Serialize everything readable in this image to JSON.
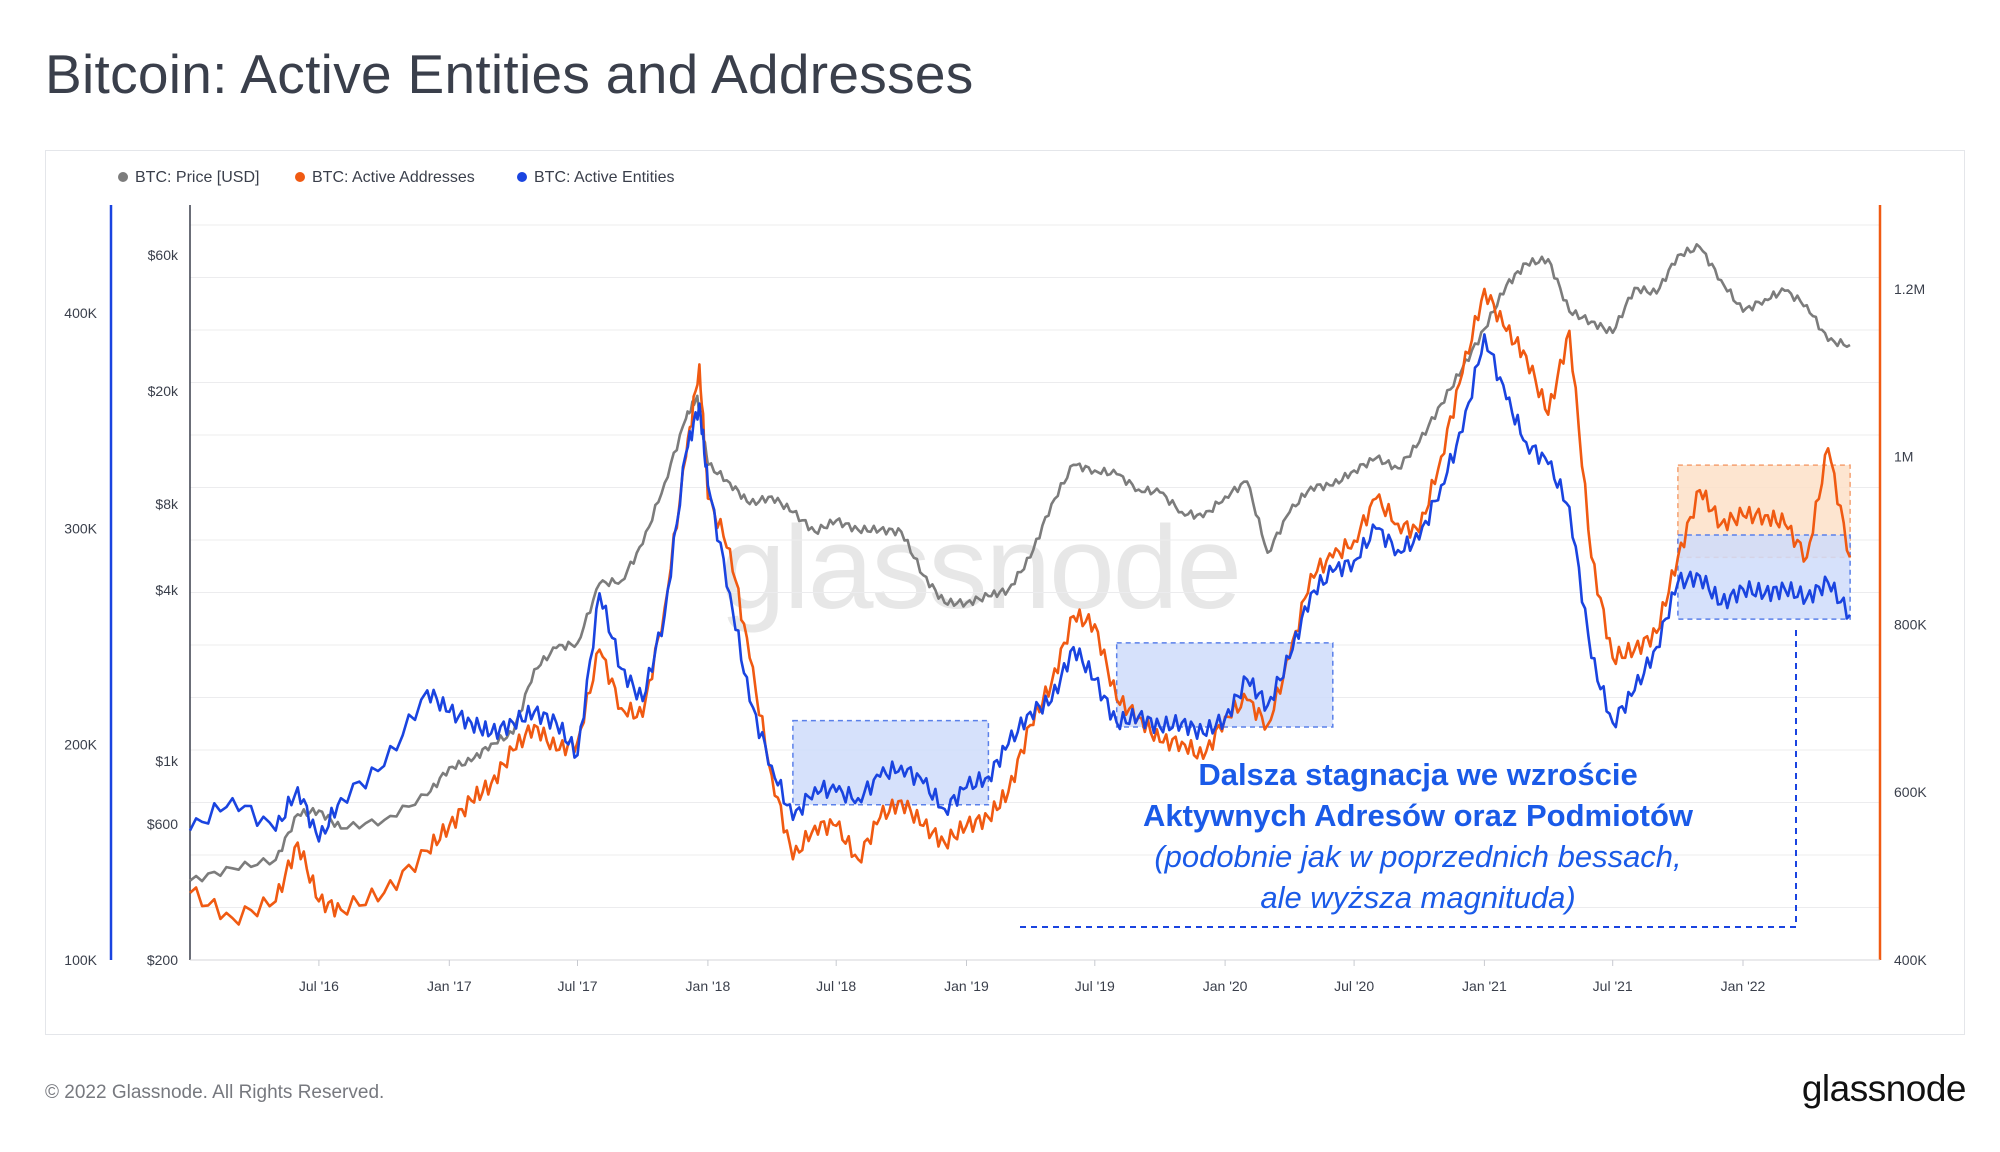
{
  "title": "Bitcoin: Active Entities and Addresses",
  "footer": {
    "copyright": "© 2022 Glassnode. All Rights Reserved.",
    "logo": "glassnode"
  },
  "watermark": "glassnode",
  "colors": {
    "price": "#7c7c7c",
    "addresses": "#f05a12",
    "entities": "#1a44e0",
    "blue_box_fill": "#cfdcfa",
    "orange_box_fill": "#fde0c8"
  },
  "chart_data": {
    "type": "line",
    "legend": [
      "BTC: Price [USD]",
      "BTC: Active Addresses",
      "BTC: Active Entities"
    ],
    "legend_placement": "top-left",
    "grid": true,
    "x_ticks": [
      "Jul '16",
      "Jan '17",
      "Jul '17",
      "Jan '18",
      "Jul '18",
      "Jan '19",
      "Jul '19",
      "Jan '20",
      "Jul '20",
      "Jan '21",
      "Jul '21",
      "Jan '22"
    ],
    "x_range": [
      "2016-01",
      "2022-06"
    ],
    "y_left_entities": {
      "ticks": [
        "100K",
        "200K",
        "300K",
        "400K"
      ],
      "range": [
        100000,
        450000
      ]
    },
    "y_left_price": {
      "scale": "log",
      "ticks": [
        "$200",
        "$600",
        "$1k",
        "$4k",
        "$8k",
        "$20k",
        "$60k"
      ],
      "range": [
        200,
        90000
      ]
    },
    "y_right_addresses": {
      "ticks": [
        "400K",
        "600K",
        "800K",
        "1M",
        "1.2M"
      ],
      "range": [
        400000,
        1300000
      ]
    },
    "series": [
      {
        "name": "BTC: Price [USD]",
        "axis": "price",
        "points": [
          [
            "2016-01",
            380
          ],
          [
            "2016-03",
            420
          ],
          [
            "2016-05",
            450
          ],
          [
            "2016-06",
            650
          ],
          [
            "2016-07",
            670
          ],
          [
            "2016-08",
            580
          ],
          [
            "2016-10",
            620
          ],
          [
            "2016-12",
            760
          ],
          [
            "2017-01",
            950
          ],
          [
            "2017-02",
            1000
          ],
          [
            "2017-03",
            1150
          ],
          [
            "2017-04",
            1250
          ],
          [
            "2017-05",
            2100
          ],
          [
            "2017-06",
            2500
          ],
          [
            "2017-07",
            2600
          ],
          [
            "2017-08",
            4200
          ],
          [
            "2017-09",
            4300
          ],
          [
            "2017-10",
            5800
          ],
          [
            "2017-11",
            9500
          ],
          [
            "2017-12",
            16000
          ],
          [
            "2017-12-17",
            19200
          ],
          [
            "2018-01",
            11000
          ],
          [
            "2018-02",
            9500
          ],
          [
            "2018-03",
            8000
          ],
          [
            "2018-04",
            8500
          ],
          [
            "2018-05",
            7500
          ],
          [
            "2018-06",
            6400
          ],
          [
            "2018-07",
            7000
          ],
          [
            "2018-08",
            6500
          ],
          [
            "2018-09",
            6500
          ],
          [
            "2018-10",
            6400
          ],
          [
            "2018-11",
            4500
          ],
          [
            "2018-12",
            3600
          ],
          [
            "2019-01",
            3600
          ],
          [
            "2019-02",
            3800
          ],
          [
            "2019-03",
            4000
          ],
          [
            "2019-04",
            5200
          ],
          [
            "2019-05",
            8000
          ],
          [
            "2019-06",
            11000
          ],
          [
            "2019-07",
            10500
          ],
          [
            "2019-08",
            10200
          ],
          [
            "2019-09",
            9000
          ],
          [
            "2019-10",
            8800
          ],
          [
            "2019-11",
            7500
          ],
          [
            "2019-12",
            7200
          ],
          [
            "2020-01",
            8500
          ],
          [
            "2020-02",
            9600
          ],
          [
            "2020-03",
            5400
          ],
          [
            "2020-04",
            7500
          ],
          [
            "2020-05",
            9200
          ],
          [
            "2020-06",
            9300
          ],
          [
            "2020-07",
            10500
          ],
          [
            "2020-08",
            11600
          ],
          [
            "2020-09",
            10700
          ],
          [
            "2020-10",
            13200
          ],
          [
            "2020-11",
            18000
          ],
          [
            "2020-12",
            24000
          ],
          [
            "2021-01",
            33000
          ],
          [
            "2021-02",
            47000
          ],
          [
            "2021-03",
            56000
          ],
          [
            "2021-04",
            58000
          ],
          [
            "2021-05",
            38000
          ],
          [
            "2021-06",
            35000
          ],
          [
            "2021-07",
            32000
          ],
          [
            "2021-08",
            46000
          ],
          [
            "2021-09",
            44000
          ],
          [
            "2021-10",
            60000
          ],
          [
            "2021-11",
            64000
          ],
          [
            "2021-12",
            49000
          ],
          [
            "2022-01",
            38000
          ],
          [
            "2022-02",
            42000
          ],
          [
            "2022-03",
            45000
          ],
          [
            "2022-04",
            40000
          ],
          [
            "2022-05",
            30000
          ],
          [
            "2022-06",
            29000
          ]
        ]
      },
      {
        "name": "BTC: Active Addresses",
        "axis": "addresses",
        "points": [
          [
            "2016-01",
            480000
          ],
          [
            "2016-03",
            450000
          ],
          [
            "2016-05",
            470000
          ],
          [
            "2016-06",
            540000
          ],
          [
            "2016-07",
            470000
          ],
          [
            "2016-08",
            460000
          ],
          [
            "2016-10",
            480000
          ],
          [
            "2016-12",
            530000
          ],
          [
            "2017-01",
            560000
          ],
          [
            "2017-02",
            590000
          ],
          [
            "2017-03",
            610000
          ],
          [
            "2017-04",
            650000
          ],
          [
            "2017-05",
            680000
          ],
          [
            "2017-06",
            650000
          ],
          [
            "2017-07",
            660000
          ],
          [
            "2017-08",
            770000
          ],
          [
            "2017-09",
            700000
          ],
          [
            "2017-10",
            690000
          ],
          [
            "2017-11",
            820000
          ],
          [
            "2017-12",
            1000000
          ],
          [
            "2017-12-20",
            1110000
          ],
          [
            "2018-01",
            950000
          ],
          [
            "2018-02",
            890000
          ],
          [
            "2018-03",
            760000
          ],
          [
            "2018-04",
            620000
          ],
          [
            "2018-05",
            520000
          ],
          [
            "2018-06",
            560000
          ],
          [
            "2018-07",
            560000
          ],
          [
            "2018-08",
            520000
          ],
          [
            "2018-09",
            570000
          ],
          [
            "2018-10",
            590000
          ],
          [
            "2018-11",
            560000
          ],
          [
            "2018-12",
            540000
          ],
          [
            "2019-01",
            560000
          ],
          [
            "2019-02",
            570000
          ],
          [
            "2019-03",
            600000
          ],
          [
            "2019-04",
            680000
          ],
          [
            "2019-05",
            730000
          ],
          [
            "2019-06",
            810000
          ],
          [
            "2019-07",
            800000
          ],
          [
            "2019-08",
            710000
          ],
          [
            "2019-09",
            690000
          ],
          [
            "2019-10",
            660000
          ],
          [
            "2019-11",
            660000
          ],
          [
            "2019-12",
            640000
          ],
          [
            "2020-01",
            690000
          ],
          [
            "2020-02",
            710000
          ],
          [
            "2020-03",
            680000
          ],
          [
            "2020-04",
            760000
          ],
          [
            "2020-05",
            860000
          ],
          [
            "2020-06",
            880000
          ],
          [
            "2020-07",
            900000
          ],
          [
            "2020-08",
            950000
          ],
          [
            "2020-09",
            920000
          ],
          [
            "2020-10",
            910000
          ],
          [
            "2020-11",
            1000000
          ],
          [
            "2020-12",
            1100000
          ],
          [
            "2021-01",
            1200000
          ],
          [
            "2021-02",
            1150000
          ],
          [
            "2021-03",
            1120000
          ],
          [
            "2021-04",
            1050000
          ],
          [
            "2021-05",
            1150000
          ],
          [
            "2021-06",
            880000
          ],
          [
            "2021-07",
            760000
          ],
          [
            "2021-08",
            770000
          ],
          [
            "2021-09",
            790000
          ],
          [
            "2021-10",
            880000
          ],
          [
            "2021-11",
            960000
          ],
          [
            "2021-12",
            920000
          ],
          [
            "2022-01",
            930000
          ],
          [
            "2022-02",
            930000
          ],
          [
            "2022-03",
            920000
          ],
          [
            "2022-04",
            880000
          ],
          [
            "2022-05",
            1010000
          ],
          [
            "2022-06",
            880000
          ]
        ]
      },
      {
        "name": "BTC: Active Entities",
        "axis": "entities",
        "points": [
          [
            "2016-01",
            160000
          ],
          [
            "2016-03",
            175000
          ],
          [
            "2016-05",
            160000
          ],
          [
            "2016-06",
            180000
          ],
          [
            "2016-07",
            155000
          ],
          [
            "2016-08",
            175000
          ],
          [
            "2016-10",
            190000
          ],
          [
            "2016-12",
            225000
          ],
          [
            "2017-01",
            215000
          ],
          [
            "2017-02",
            210000
          ],
          [
            "2017-03",
            205000
          ],
          [
            "2017-04",
            210000
          ],
          [
            "2017-05",
            215000
          ],
          [
            "2017-06",
            210000
          ],
          [
            "2017-07",
            195000
          ],
          [
            "2017-08",
            270000
          ],
          [
            "2017-09",
            235000
          ],
          [
            "2017-10",
            220000
          ],
          [
            "2017-11",
            260000
          ],
          [
            "2017-12",
            335000
          ],
          [
            "2017-12-20",
            358000
          ],
          [
            "2018-01",
            320000
          ],
          [
            "2018-02",
            270000
          ],
          [
            "2018-03",
            220000
          ],
          [
            "2018-04",
            190000
          ],
          [
            "2018-05",
            165000
          ],
          [
            "2018-06",
            180000
          ],
          [
            "2018-07",
            178000
          ],
          [
            "2018-08",
            175000
          ],
          [
            "2018-09",
            185000
          ],
          [
            "2018-10",
            190000
          ],
          [
            "2018-11",
            182000
          ],
          [
            "2018-12",
            170000
          ],
          [
            "2019-01",
            180000
          ],
          [
            "2019-02",
            185000
          ],
          [
            "2019-03",
            200000
          ],
          [
            "2019-04",
            215000
          ],
          [
            "2019-05",
            220000
          ],
          [
            "2019-06",
            245000
          ],
          [
            "2019-07",
            230000
          ],
          [
            "2019-08",
            210000
          ],
          [
            "2019-09",
            213000
          ],
          [
            "2019-10",
            208000
          ],
          [
            "2019-11",
            210000
          ],
          [
            "2019-12",
            205000
          ],
          [
            "2020-01",
            212000
          ],
          [
            "2020-02",
            230000
          ],
          [
            "2020-03",
            218000
          ],
          [
            "2020-04",
            240000
          ],
          [
            "2020-05",
            270000
          ],
          [
            "2020-06",
            280000
          ],
          [
            "2020-07",
            285000
          ],
          [
            "2020-08",
            300000
          ],
          [
            "2020-09",
            290000
          ],
          [
            "2020-10",
            295000
          ],
          [
            "2020-11",
            320000
          ],
          [
            "2020-12",
            345000
          ],
          [
            "2021-01",
            390000
          ],
          [
            "2021-02",
            360000
          ],
          [
            "2021-03",
            340000
          ],
          [
            "2021-04",
            330000
          ],
          [
            "2021-05",
            310000
          ],
          [
            "2021-06",
            240000
          ],
          [
            "2021-07",
            210000
          ],
          [
            "2021-08",
            225000
          ],
          [
            "2021-09",
            245000
          ],
          [
            "2021-10",
            275000
          ],
          [
            "2021-11",
            278000
          ],
          [
            "2021-12",
            265000
          ],
          [
            "2022-01",
            272000
          ],
          [
            "2022-02",
            270000
          ],
          [
            "2022-03",
            272000
          ],
          [
            "2022-04",
            268000
          ],
          [
            "2022-05",
            275000
          ],
          [
            "2022-06",
            260000
          ]
        ]
      }
    ],
    "shaded_ranges": [
      {
        "from": "2018-05",
        "to": "2019-02",
        "low": 172000,
        "high": 211000,
        "color": "blue"
      },
      {
        "from": "2019-08",
        "to": "2020-06",
        "low": 208000,
        "high": 247000,
        "color": "blue"
      },
      {
        "from": "2021-10",
        "to": "2022-06",
        "low": 258000,
        "high": 297000,
        "color": "blue"
      },
      {
        "from": "2021-10",
        "to": "2022-06",
        "low": 880000,
        "high": 990000,
        "color": "orange"
      }
    ],
    "annotation": {
      "line1": "Dalsza stagnacja we wzroście",
      "line2": "Aktywnych Adresów oraz Podmiotów",
      "line3": "(podobnie jak w poprzednich bessach,",
      "line4": "ale wyższa magnituda)"
    }
  }
}
